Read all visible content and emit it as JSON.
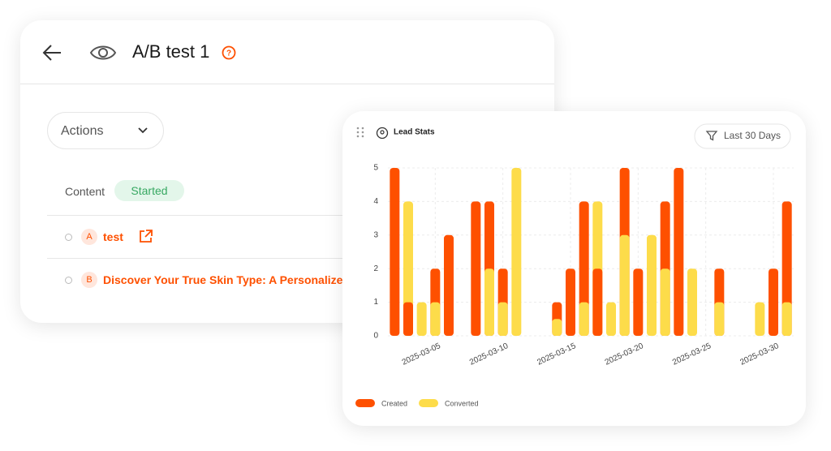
{
  "header": {
    "title": "A/B test 1"
  },
  "actions": "Actions",
  "content": {
    "label": "Content",
    "status": "Started"
  },
  "variants": [
    {
      "letter": "A",
      "name": "test"
    },
    {
      "letter": "B",
      "name": "Discover Your True Skin Type: A Personalize..."
    }
  ],
  "widget": {
    "filter": "Last 30 Days"
  },
  "chart_data": {
    "type": "bar",
    "title": "Lead Stats",
    "categories": [
      null,
      null,
      null,
      "2025-03-05",
      null,
      null,
      null,
      null,
      "2025-03-10",
      null,
      null,
      null,
      null,
      "2025-03-15",
      null,
      null,
      null,
      null,
      "2025-03-20",
      null,
      null,
      null,
      null,
      "2025-03-25",
      null,
      null,
      null,
      null,
      "2025-03-30",
      null
    ],
    "series": [
      {
        "name": "Created",
        "color": "#fe5000",
        "values": [
          5,
          1,
          0,
          2,
          3,
          0,
          4,
          4,
          2,
          0,
          0,
          0,
          1,
          2,
          4,
          2,
          0,
          5,
          2,
          0,
          4,
          5,
          0,
          0,
          2,
          0,
          0,
          0,
          2,
          4
        ]
      },
      {
        "name": "Converted",
        "color": "#fddc4a",
        "values": [
          0,
          4,
          1,
          1,
          0,
          0,
          0,
          2,
          1,
          5,
          0,
          0,
          0.5,
          0,
          1,
          4,
          1,
          3,
          0,
          3,
          2,
          0,
          2,
          0,
          1,
          0,
          0,
          1,
          0,
          1
        ]
      }
    ],
    "ylim": [
      0,
      5
    ],
    "yticks": [
      0,
      1,
      2,
      3,
      4,
      5
    ],
    "grid": true,
    "legend": "bottom-left"
  }
}
